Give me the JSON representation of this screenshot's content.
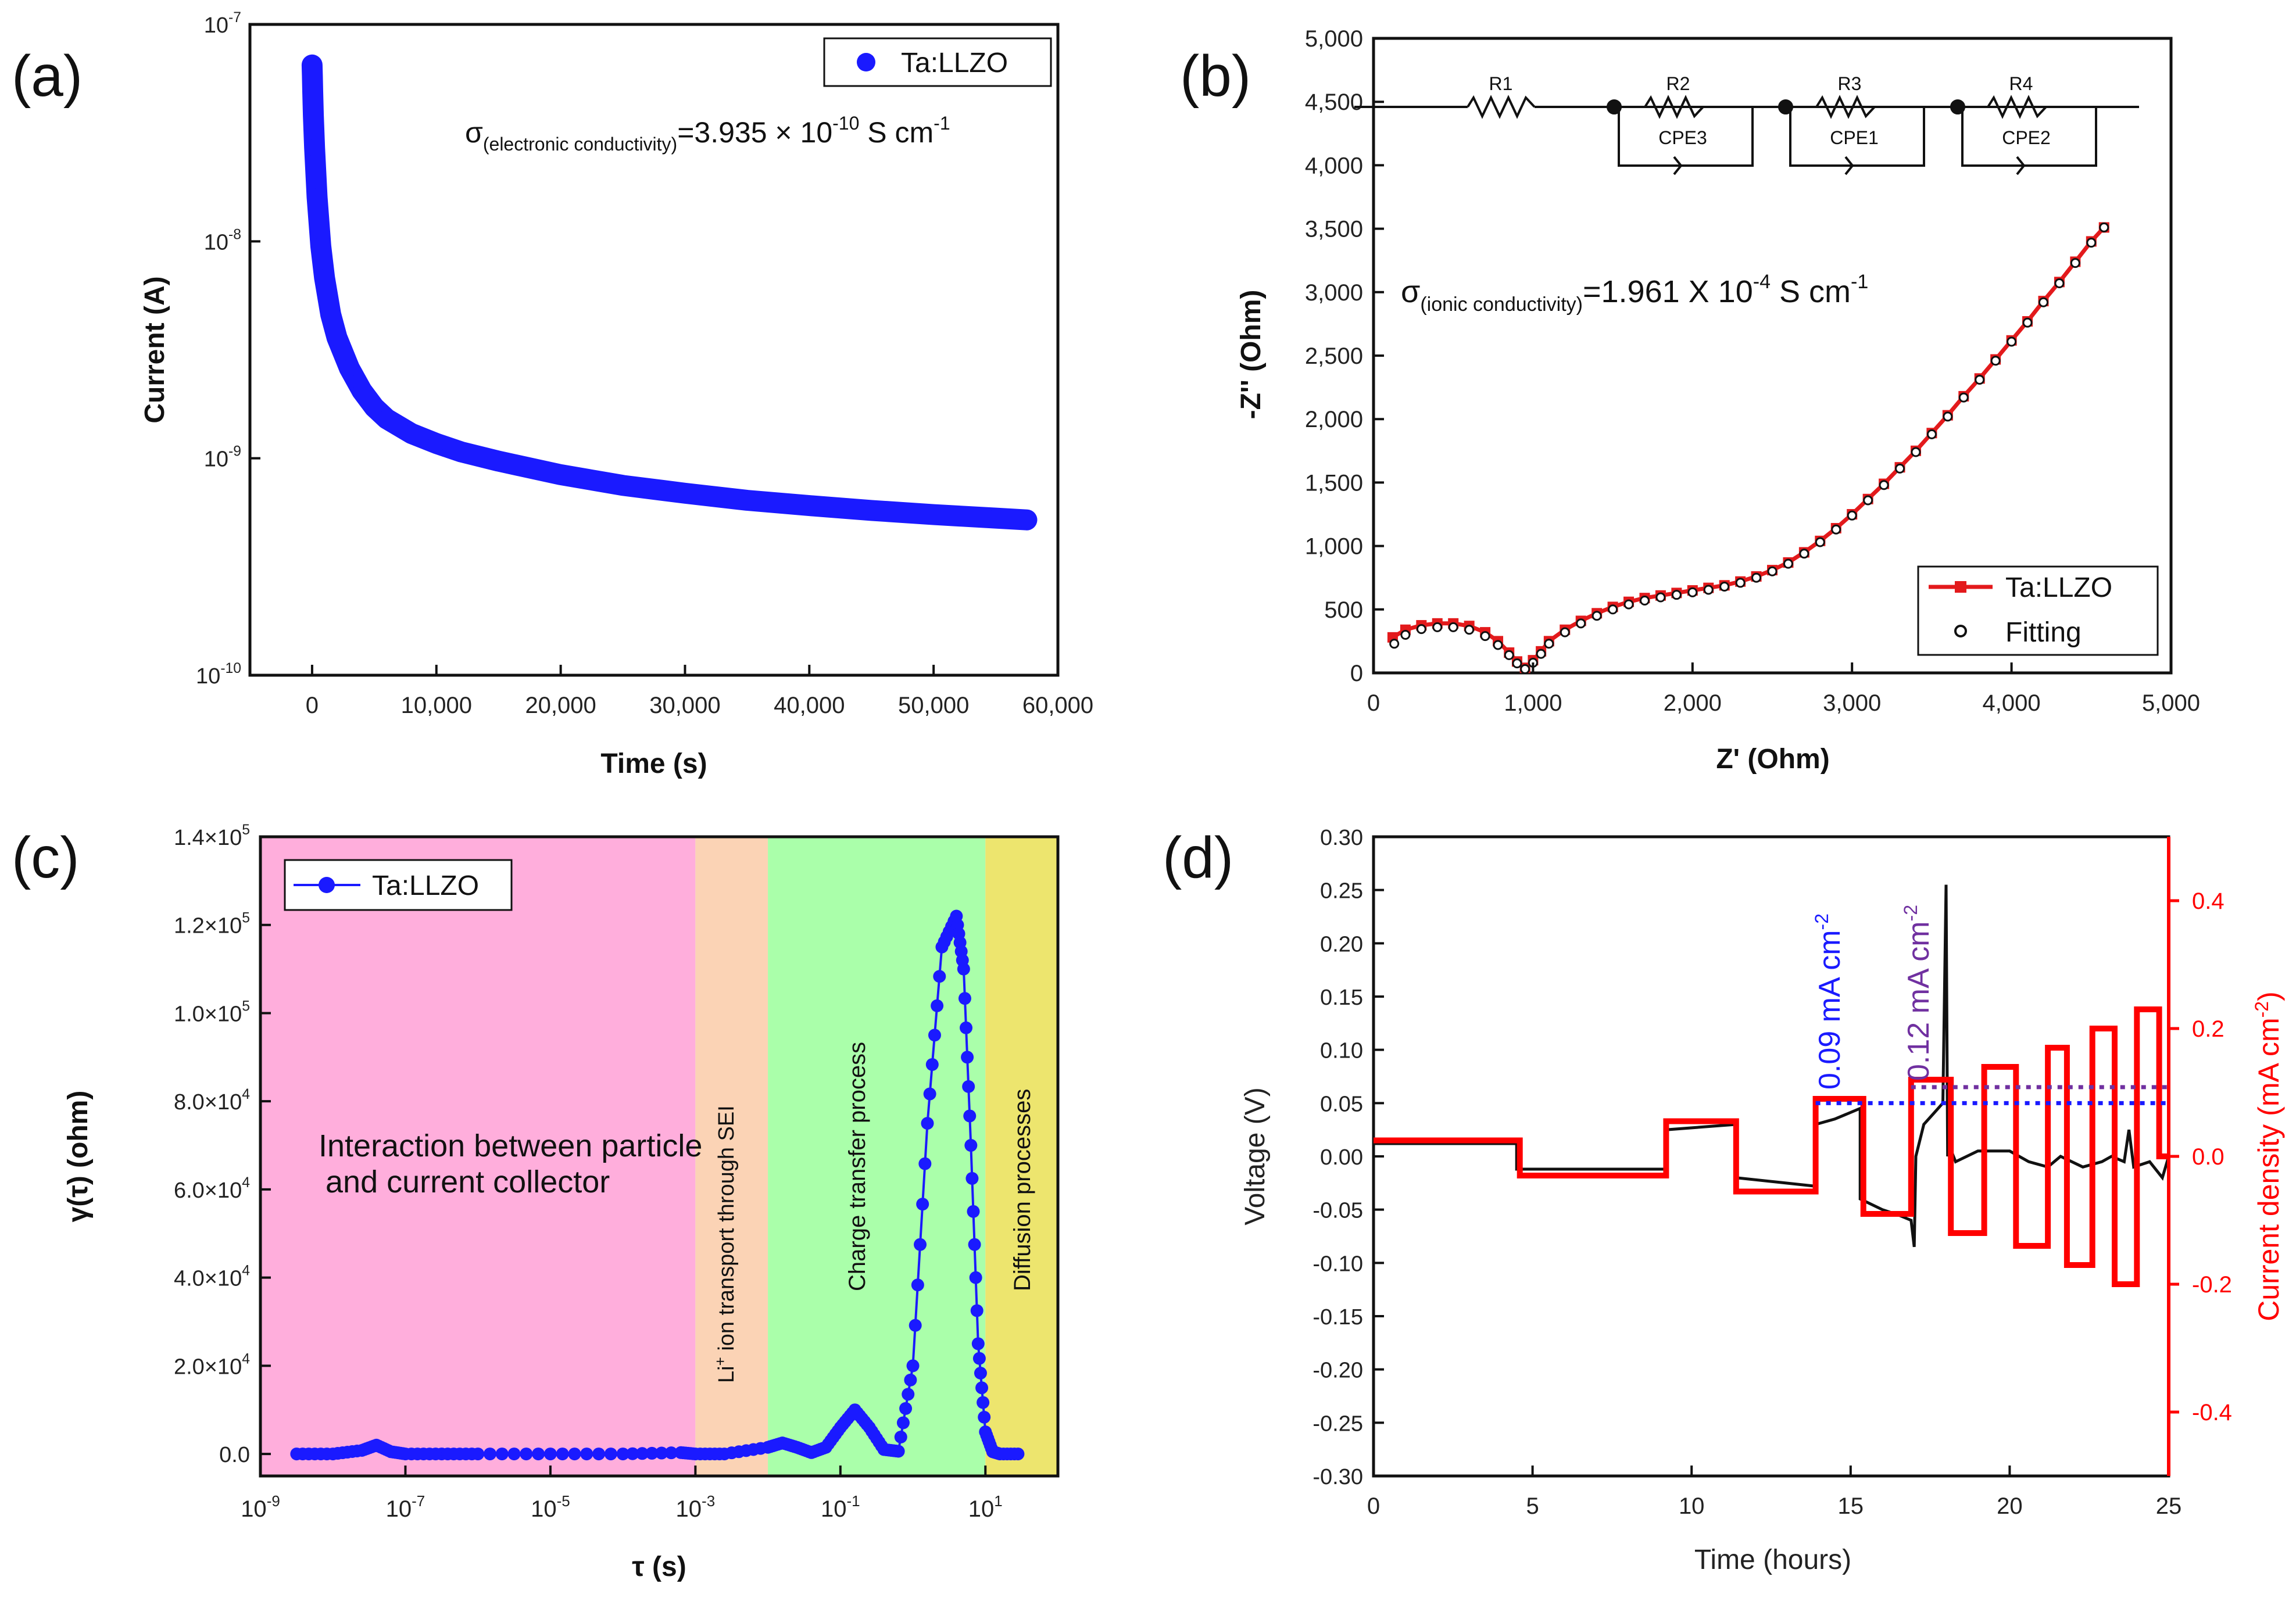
{
  "panels": [
    {
      "id": "a",
      "label": "(a)"
    },
    {
      "id": "b",
      "label": "(b)"
    },
    {
      "id": "c",
      "label": "(c)"
    },
    {
      "id": "d",
      "label": "(d)"
    }
  ],
  "chart_data": [
    {
      "id": "a",
      "type": "scatter",
      "xlabel": "Time (s)",
      "ylabel": "Current (A)",
      "xlim": [
        -5000,
        60000
      ],
      "x_ticks": [
        0,
        10000,
        20000,
        30000,
        40000,
        50000,
        60000
      ],
      "x_tick_labels": [
        "0",
        "10,000",
        "20,000",
        "30,000",
        "40,000",
        "50,000",
        "60,000"
      ],
      "ylim_log10": [
        -10,
        -7
      ],
      "y_ticks": [
        -10,
        -9,
        -8,
        -7
      ],
      "y_tick_labels": [
        "10",
        "10",
        "10",
        "10"
      ],
      "y_tick_exponents": [
        "-10",
        "-9",
        "-8",
        "-7"
      ],
      "legend": [
        "Ta:LLZO"
      ],
      "annotation": {
        "prefix": "σ",
        "subscript": "(electronic conductivity)",
        "value": "=3.935 × 10",
        "exponent": "-10",
        "suffix": " S cm",
        "suffix_exponent": "-1"
      },
      "series": [
        {
          "name": "Ta:LLZO",
          "color": "#1a1aff",
          "x": [
            0,
            20,
            50,
            100,
            200,
            400,
            700,
            1000,
            1500,
            2000,
            3000,
            4000,
            5000,
            6000,
            8000,
            10000,
            12000,
            15000,
            20000,
            25000,
            30000,
            35000,
            40000,
            45000,
            50000,
            55000,
            57500
          ],
          "y": [
            6.5e-08,
            5.8e-08,
            4.9e-08,
            3.8e-08,
            2.7e-08,
            1.6e-08,
            9.5e-09,
            6.8e-09,
            4.6e-09,
            3.6e-09,
            2.6e-09,
            2.05e-09,
            1.72e-09,
            1.52e-09,
            1.3e-09,
            1.17e-09,
            1.07e-09,
            9.7e-10,
            8.4e-10,
            7.5e-10,
            6.9e-10,
            6.4e-10,
            6.05e-10,
            5.75e-10,
            5.5e-10,
            5.3e-10,
            5.2e-10
          ]
        }
      ]
    },
    {
      "id": "b",
      "type": "line",
      "xlabel": "Z' (Ohm)",
      "ylabel": "-Z'' (Ohm)",
      "xlim": [
        0,
        5000
      ],
      "ylim": [
        0,
        5000
      ],
      "x_ticks": [
        0,
        1000,
        2000,
        3000,
        4000,
        5000
      ],
      "x_tick_labels": [
        "0",
        "1,000",
        "2,000",
        "3,000",
        "4,000",
        "5,000"
      ],
      "y_ticks": [
        0,
        500,
        1000,
        1500,
        2000,
        2500,
        3000,
        3500,
        4000,
        4500,
        5000
      ],
      "y_tick_labels": [
        "0",
        "500",
        "1,000",
        "1,500",
        "2,000",
        "2,500",
        "3,000",
        "3,500",
        "4,000",
        "4,500",
        "5,000"
      ],
      "legend": [
        "Ta:LLZO",
        "Fitting"
      ],
      "annotation": {
        "prefix": "σ",
        "subscript": "(ionic conductivity)",
        "value": "=1.961 X 10",
        "exponent": "-4",
        "suffix": " S cm",
        "suffix_exponent": "-1"
      },
      "circuit_labels": [
        "R1",
        "R2",
        "R3",
        "R4",
        "CPE3",
        "CPE1",
        "CPE2"
      ],
      "series": [
        {
          "name": "Ta:LLZO",
          "color": "#e31a1c",
          "marker": "square",
          "x": [
            120,
            200,
            300,
            400,
            500,
            600,
            700,
            780,
            850,
            900,
            950,
            1000,
            1050,
            1100,
            1200,
            1300,
            1400,
            1500,
            1600,
            1700,
            1800,
            1900,
            2000,
            2100,
            2200,
            2300,
            2400,
            2500,
            2600,
            2700,
            2800,
            2900,
            3000,
            3100,
            3200,
            3300,
            3400,
            3500,
            3600,
            3700,
            3800,
            3900,
            4000,
            4100,
            4200,
            4300,
            4400,
            4500,
            4580
          ],
          "y": [
            280,
            340,
            375,
            390,
            390,
            370,
            320,
            250,
            160,
            90,
            40,
            100,
            170,
            250,
            340,
            410,
            470,
            520,
            560,
            590,
            610,
            630,
            650,
            670,
            690,
            720,
            760,
            810,
            870,
            950,
            1040,
            1140,
            1250,
            1370,
            1490,
            1620,
            1750,
            1890,
            2030,
            2180,
            2320,
            2470,
            2620,
            2770,
            2930,
            3080,
            3240,
            3400,
            3510
          ]
        },
        {
          "name": "Fitting",
          "color": "#111111",
          "marker": "circle-open",
          "x": [
            130,
            200,
            300,
            400,
            500,
            600,
            700,
            780,
            850,
            900,
            950,
            1000,
            1050,
            1100,
            1200,
            1300,
            1400,
            1500,
            1600,
            1700,
            1800,
            1900,
            2000,
            2100,
            2200,
            2300,
            2400,
            2500,
            2600,
            2700,
            2800,
            2900,
            3000,
            3100,
            3200,
            3300,
            3400,
            3500,
            3600,
            3700,
            3800,
            3900,
            4000,
            4100,
            4200,
            4300,
            4400,
            4500,
            4580
          ],
          "y": [
            230,
            300,
            345,
            360,
            360,
            340,
            290,
            220,
            140,
            75,
            30,
            80,
            150,
            230,
            320,
            390,
            450,
            500,
            540,
            570,
            595,
            615,
            635,
            655,
            680,
            710,
            750,
            800,
            860,
            940,
            1030,
            1130,
            1240,
            1360,
            1480,
            1610,
            1740,
            1880,
            2020,
            2170,
            2310,
            2460,
            2610,
            2760,
            2920,
            3070,
            3230,
            3390,
            3510
          ]
        }
      ]
    },
    {
      "id": "c",
      "type": "line",
      "xlabel": "τ (s)",
      "ylabel": "γ(τ) (ohm)",
      "xlim_log10": [
        -9,
        2
      ],
      "x_ticks": [
        -9,
        -7,
        -5,
        -3,
        -1,
        1
      ],
      "x_tick_labels": [
        "10",
        "10",
        "10",
        "10",
        "10",
        "10"
      ],
      "x_tick_exponents": [
        "-9",
        "-7",
        "-5",
        "-3",
        "-1",
        "1"
      ],
      "ylim": [
        -5000,
        140000
      ],
      "y_ticks": [
        0,
        20000,
        40000,
        60000,
        80000,
        100000,
        120000,
        140000
      ],
      "y_tick_labels": [
        "0.0",
        "2.0×10",
        "4.0×10",
        "6.0×10",
        "8.0×10",
        "1.0×10",
        "1.2×10",
        "1.4×10"
      ],
      "y_tick_exponents": [
        "",
        "4",
        "4",
        "4",
        "4",
        "5",
        "5",
        "5"
      ],
      "legend": [
        "Ta:LLZO"
      ],
      "regions": [
        {
          "name": "Interaction between particle",
          "name2": "and current collector",
          "from": -9,
          "to": -3,
          "color": "#ffaedc"
        },
        {
          "name": "Li",
          "name_sup": "+",
          "name_rest": " ion transport through SEI",
          "from": -3,
          "to": -2,
          "color": "#fbd3b5"
        },
        {
          "name": "Charge transfer process",
          "from": -2,
          "to": 1,
          "color": "#aaffaa"
        },
        {
          "name": "Diffusion processes",
          "from": 1,
          "to": 2,
          "color": "#ede56e"
        }
      ],
      "series": [
        {
          "name": "Ta:LLZO",
          "color": "#1a1aff",
          "log10_x": [
            -8.5,
            -8,
            -7.6,
            -7.4,
            -7.2,
            -7,
            -6.5,
            -6,
            -5,
            -4,
            -3.2,
            -3,
            -2.6,
            -2,
            -1.8,
            -1.6,
            -1.4,
            -1.2,
            -1,
            -0.8,
            -0.6,
            -0.4,
            -0.2,
            0,
            0.2,
            0.4,
            0.6,
            0.7,
            0.8,
            0.9,
            1,
            1.1,
            1.2,
            1.5
          ],
          "y": [
            0,
            0,
            800,
            2000,
            500,
            0,
            0,
            0,
            0,
            0,
            300,
            0,
            0,
            1500,
            2500,
            1500,
            300,
            1500,
            6000,
            10000,
            6000,
            1000,
            600,
            20000,
            75000,
            115000,
            122000,
            110000,
            70000,
            25000,
            5000,
            500,
            0,
            0
          ]
        }
      ]
    },
    {
      "id": "d",
      "type": "line",
      "xlabel": "Time (hours)",
      "ylabel": "Voltage (V)",
      "ylabel_right": "Current density (mA cm",
      "ylabel_right_exponent": "-2",
      "ylabel_right_close": ")",
      "xlim": [
        0,
        25
      ],
      "x_ticks": [
        0,
        5,
        10,
        15,
        20,
        25
      ],
      "x_tick_labels": [
        "0",
        "5",
        "10",
        "15",
        "20",
        "25"
      ],
      "ylim": [
        -0.3,
        0.3
      ],
      "y_ticks": [
        -0.3,
        -0.25,
        -0.2,
        -0.15,
        -0.1,
        -0.05,
        0.0,
        0.05,
        0.1,
        0.15,
        0.2,
        0.25,
        0.3
      ],
      "y_tick_labels": [
        "-0.30",
        "-0.25",
        "-0.20",
        "-0.15",
        "-0.10",
        "-0.05",
        "0.00",
        "0.05",
        "0.10",
        "0.15",
        "0.20",
        "0.25",
        "0.30"
      ],
      "ylim_right": [
        -0.5,
        0.5
      ],
      "y_ticks_right": [
        -0.4,
        -0.2,
        0.0,
        0.2,
        0.4
      ],
      "y_tick_labels_right": [
        "-0.4",
        "-0.2",
        "0.0",
        "0.2",
        "0.4"
      ],
      "annotations": [
        {
          "text": "0.09 mA cm",
          "exponent": "-2",
          "color": "#1a1aff",
          "level": 0.05
        },
        {
          "text": "0.12 mA cm",
          "exponent": "-2",
          "color": "#7030a0",
          "level": 0.065
        }
      ],
      "series": [
        {
          "name": "Voltage",
          "color": "#111111",
          "x": [
            0,
            4.5,
            4.5,
            9.2,
            9.2,
            11.4,
            11.4,
            13.9,
            13.9,
            14.5,
            15.3,
            15.3,
            16.0,
            16.5,
            16.9,
            17.0,
            17.05,
            17.3,
            17.6,
            17.9,
            18.0,
            18.05,
            18.1,
            18.3,
            19.0,
            20.0,
            20.6,
            21.2,
            21.6,
            22.3,
            22.9,
            23.2,
            23.6,
            23.75,
            23.9,
            24.4,
            24.8,
            25
          ],
          "y": [
            0.012,
            0.012,
            -0.012,
            -0.012,
            0.025,
            0.03,
            -0.02,
            -0.028,
            0.03,
            0.035,
            0.045,
            -0.04,
            -0.05,
            -0.055,
            -0.06,
            -0.085,
            0.0,
            0.03,
            0.04,
            0.05,
            0.255,
            0.0,
            0.01,
            -0.005,
            0.005,
            0.005,
            -0.005,
            -0.01,
            0.0,
            -0.01,
            -0.005,
            0.0,
            -0.005,
            0.025,
            -0.01,
            -0.005,
            -0.02,
            0.0
          ]
        },
        {
          "name": "Current density",
          "color": "#ff0000",
          "x": [
            0,
            4.6,
            4.6,
            9.2,
            9.2,
            11.4,
            11.4,
            13.9,
            13.9,
            15.4,
            15.4,
            16.9,
            16.9,
            18.15,
            18.15,
            19.2,
            19.2,
            20.2,
            20.2,
            21.2,
            21.2,
            21.8,
            21.8,
            22.6,
            22.6,
            23.3,
            23.3,
            24.0,
            24.0,
            24.7,
            24.7,
            25
          ],
          "y": [
            0.025,
            0.025,
            -0.03,
            -0.03,
            0.055,
            0.055,
            -0.055,
            -0.055,
            0.09,
            0.09,
            -0.09,
            -0.09,
            0.12,
            0.12,
            -0.12,
            -0.12,
            0.14,
            0.14,
            -0.14,
            -0.14,
            0.17,
            0.17,
            -0.17,
            -0.17,
            0.2,
            0.2,
            -0.2,
            -0.2,
            0.23,
            0.23,
            0.0,
            0.0
          ]
        }
      ]
    }
  ]
}
